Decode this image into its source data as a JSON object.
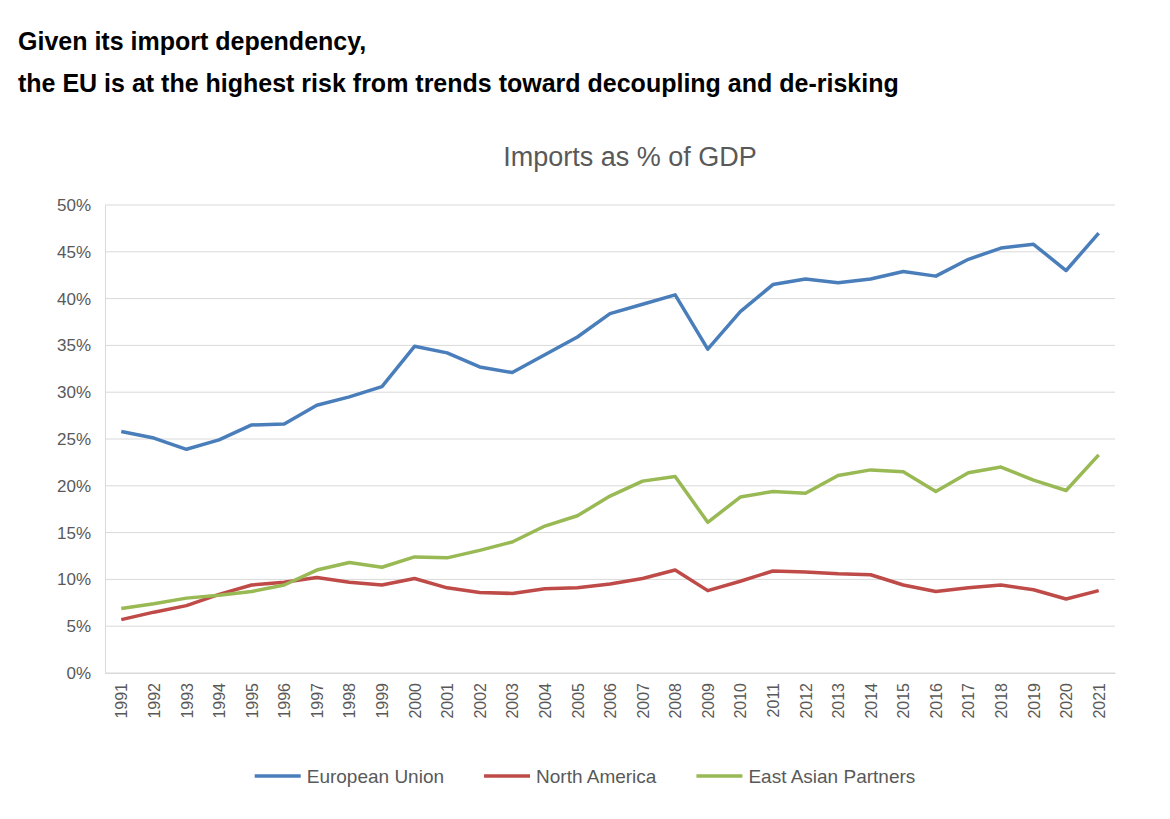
{
  "chart_data": {
    "type": "line",
    "headline": [
      "Given its import dependency,",
      "the EU is at the highest risk from trends toward decoupling and de-risking"
    ],
    "title": "Imports as % of GDP",
    "categories": [
      "1991",
      "1992",
      "1993",
      "1994",
      "1995",
      "1996",
      "1997",
      "1998",
      "1999",
      "2000",
      "2001",
      "2002",
      "2003",
      "2004",
      "2005",
      "2006",
      "2007",
      "2008",
      "2009",
      "2010",
      "2011",
      "2012",
      "2013",
      "2014",
      "2015",
      "2016",
      "2017",
      "2018",
      "2019",
      "2020",
      "2021"
    ],
    "series": [
      {
        "name": "European Union",
        "color": "#4a7ebb",
        "values": [
          25.8,
          25.1,
          23.9,
          24.9,
          26.5,
          26.6,
          28.6,
          29.5,
          30.6,
          34.9,
          34.2,
          32.7,
          32.1,
          34.0,
          35.9,
          38.4,
          39.4,
          40.4,
          34.6,
          38.6,
          41.5,
          42.1,
          41.7,
          42.1,
          42.9,
          42.4,
          44.2,
          45.4,
          45.8,
          43.0,
          47.0
        ]
      },
      {
        "name": "North America",
        "color": "#be4b48",
        "values": [
          5.7,
          6.5,
          7.2,
          8.4,
          9.4,
          9.7,
          10.2,
          9.7,
          9.4,
          10.1,
          9.1,
          8.6,
          8.5,
          9.0,
          9.1,
          9.5,
          10.1,
          11.0,
          8.8,
          9.8,
          10.9,
          10.8,
          10.6,
          10.5,
          9.4,
          8.7,
          9.1,
          9.4,
          8.9,
          7.9,
          8.8
        ]
      },
      {
        "name": "East Asian Partners",
        "color": "#98b954",
        "values": [
          6.9,
          7.4,
          8.0,
          8.3,
          8.7,
          9.4,
          11.0,
          11.8,
          11.3,
          12.4,
          12.3,
          13.1,
          14.0,
          15.7,
          16.8,
          18.9,
          20.5,
          21.0,
          16.1,
          18.8,
          19.4,
          19.2,
          21.1,
          21.7,
          21.5,
          19.4,
          21.4,
          22.0,
          20.6,
          19.5,
          23.3
        ]
      }
    ],
    "ylim": [
      0,
      50
    ],
    "yticks": [
      {
        "value": 0,
        "label": "0%"
      },
      {
        "value": 5,
        "label": "5%"
      },
      {
        "value": 10,
        "label": "10%"
      },
      {
        "value": 15,
        "label": "15%"
      },
      {
        "value": 20,
        "label": "20%"
      },
      {
        "value": 25,
        "label": "25%"
      },
      {
        "value": 30,
        "label": "30%"
      },
      {
        "value": 35,
        "label": "35%"
      },
      {
        "value": 40,
        "label": "40%"
      },
      {
        "value": 45,
        "label": "45%"
      },
      {
        "value": 50,
        "label": "50%"
      }
    ],
    "grid": true,
    "legend": "bottom"
  }
}
